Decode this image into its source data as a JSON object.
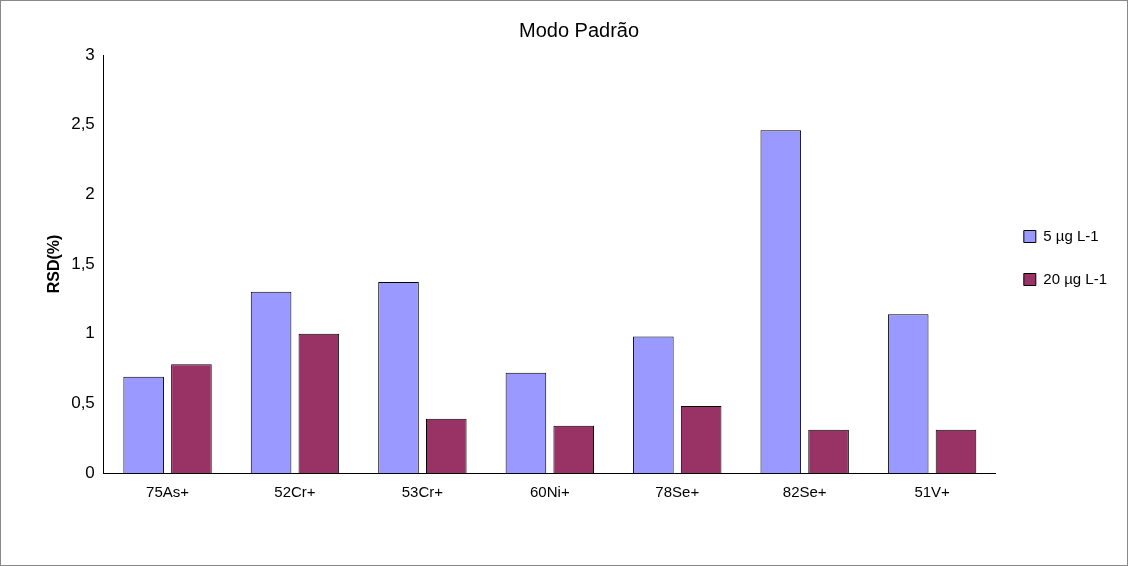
{
  "chart_data": {
    "type": "bar",
    "title": "Modo Padrão",
    "ylabel": "RSD(%)",
    "categories": [
      "75As+",
      "52Cr+",
      "53Cr+",
      "60Ni+",
      "78Se+",
      "82Se+",
      "51V+"
    ],
    "series": [
      {
        "name": "5 µg L-1",
        "color": "#9999ff",
        "values": [
          0.69,
          1.3,
          1.37,
          0.72,
          0.98,
          2.46,
          1.14
        ]
      },
      {
        "name": "20 µg L-1",
        "color": "#993366",
        "values": [
          0.78,
          1.0,
          0.39,
          0.34,
          0.48,
          0.31,
          0.31
        ]
      }
    ],
    "ylim": [
      0,
      3
    ],
    "yticks": [
      0,
      {
        "value": 0.5,
        "label": "0,5"
      },
      1,
      {
        "value": 1.5,
        "label": "1,5"
      },
      2,
      {
        "value": 2.5,
        "label": "2,5"
      },
      3
    ],
    "grid": false,
    "legend": "right"
  }
}
